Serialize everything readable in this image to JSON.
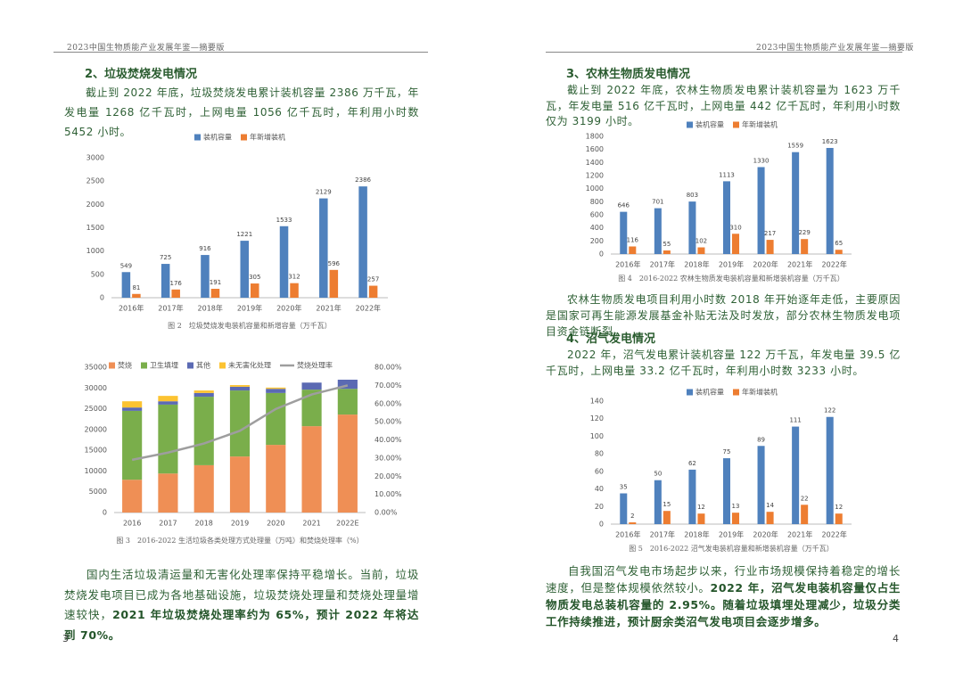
{
  "left_page": {
    "header": "2023中国生物质能产业发展年鉴—摘要版",
    "page_number": "3",
    "heading": "2、垃圾焚烧发电情况",
    "paragraph": "截止到 2022 年底，垃圾焚烧发电累计装机容量 2386 万千瓦，年发电量 1268 亿千瓦时，上网电量 1056 亿千瓦时，年利用小时数 5452 小时。",
    "closing": [
      {
        "text": "国内生活垃圾清运量和无害化处理率保持平稳增长。当前，垃圾焚烧发电项目已成为各地基础设施，垃圾焚烧处理量和焚烧处理量增速较快，"
      },
      {
        "text": "2021 年垃圾焚烧处理率约为 65%，预计 2022 年将达到 70%。",
        "bold": true
      }
    ]
  },
  "right_page": {
    "header": "2023中国生物质能产业发展年鉴—摘要版",
    "page_number": "4",
    "heading_1": "3、农林生物质发电情况",
    "paragraph_1": "截止到 2022 年底，农林生物质发电累计装机容量为 1623 万千瓦，年发电量 516 亿千瓦时，上网电量 442 亿千瓦时，年利用小时数仅为 3199 小时。",
    "paragraph_2": "农林生物质发电项目利用小时数 2018 年开始逐年走低，主要原因是国家可再生能源发展基金补贴无法及时发放，部分农林生物质发电项目资金链断裂。",
    "heading_2": "4、沼气发电情况",
    "paragraph_3": "2022 年，沼气发电累计装机容量 122 万千瓦，年发电量 39.5 亿千瓦时，上网电量 33.2 亿千瓦时，年利用小时数 3233 小时。",
    "closing": [
      {
        "text": "自我国沼气发电市场起步以来，行业市场规模保持着稳定的增长速度，但是整体规模依然较小。"
      },
      {
        "text": "2022 年，沼气发电装机容量仅占生物质发电总装机容量的 2.95%。随着垃圾填埋处理减少，垃圾分类工作持续推进，预计厨余类沼气发电项目会逐步增多。",
        "bold": true
      }
    ]
  },
  "chart_data": [
    {
      "type": "bar",
      "caption": "图 2　垃圾焚烧发电装机容量和新增容量（万千瓦）",
      "categories": [
        "2016年",
        "2017年",
        "2018年",
        "2019年",
        "2020年",
        "2021年",
        "2022年"
      ],
      "series": [
        {
          "name": "装机容量",
          "color": "#4f81bd",
          "values": [
            549,
            725,
            916,
            1221,
            1533,
            2129,
            2386
          ]
        },
        {
          "name": "年新增装机",
          "color": "#ed7d31",
          "values": [
            81,
            176,
            191,
            305,
            312,
            596,
            257
          ]
        }
      ],
      "ylim": [
        0,
        3000
      ],
      "yticks": [
        0,
        500,
        1000,
        1500,
        2000,
        2500,
        3000
      ],
      "value_labels_shown": true
    },
    {
      "type": "bar",
      "stacked": true,
      "caption": "图 3　2016-2022 生活垃圾各类处理方式处理量（万吨）和焚烧处理率（%）",
      "categories": [
        "2016",
        "2017",
        "2018",
        "2019",
        "2020",
        "2021",
        "2022E"
      ],
      "series": [
        {
          "name": "焚烧",
          "color": "#ef8f55",
          "values": [
            7900,
            9400,
            11400,
            13500,
            16300,
            20800,
            23600
          ]
        },
        {
          "name": "卫生填埋",
          "color": "#7aae4b",
          "values": [
            16600,
            16600,
            16500,
            15900,
            12500,
            8800,
            6200
          ]
        },
        {
          "name": "其他",
          "color": "#5b6ab3",
          "values": [
            800,
            800,
            900,
            900,
            1000,
            1700,
            2200
          ]
        },
        {
          "name": "未无害化处理",
          "color": "#fcc331",
          "values": [
            1500,
            1300,
            600,
            400,
            300,
            0,
            0
          ]
        },
        {
          "name": "焚烧处理率",
          "color": "#9e9e9e",
          "type": "line",
          "axis": "y2",
          "values": [
            29,
            33,
            38,
            45,
            57,
            65,
            70
          ]
        }
      ],
      "ylim": [
        0,
        35000
      ],
      "yticks": [
        0,
        5000,
        10000,
        15000,
        20000,
        25000,
        30000,
        35000
      ],
      "y2lim": [
        0,
        80
      ],
      "y2ticks": [
        {
          "value": 0,
          "label": "0.00%"
        },
        {
          "value": 10,
          "label": "10.00%"
        },
        {
          "value": 20,
          "label": "20.00%"
        },
        {
          "value": 30,
          "label": "30.00%"
        },
        {
          "value": 40,
          "label": "40.00%"
        },
        {
          "value": 50,
          "label": "50.00%"
        },
        {
          "value": 60,
          "label": "60.00%"
        },
        {
          "value": 70,
          "label": "70.00%"
        },
        {
          "value": 80,
          "label": "80.00%"
        }
      ]
    },
    {
      "type": "bar",
      "caption": "图 4　2016-2022 农林生物质发电装机容量和新增装机容量（万千瓦）",
      "categories": [
        "2016年",
        "2017年",
        "2018年",
        "2019年",
        "2020年",
        "2021年",
        "2022年"
      ],
      "series": [
        {
          "name": "装机容量",
          "color": "#4f81bd",
          "values": [
            646,
            701,
            803,
            1113,
            1330,
            1559,
            1623
          ]
        },
        {
          "name": "年新增装机",
          "color": "#ed7d31",
          "values": [
            116,
            55,
            102,
            310,
            217,
            229,
            65
          ]
        }
      ],
      "ylim": [
        0,
        1800
      ],
      "yticks": [
        0,
        200,
        400,
        600,
        800,
        1000,
        1200,
        1400,
        1600,
        1800
      ],
      "value_labels_shown": true
    },
    {
      "type": "bar",
      "caption": "图 5　2016-2022 沼气发电装机容量和新增装机容量（万千瓦）",
      "categories": [
        "2016年",
        "2017年",
        "2018年",
        "2019年",
        "2020年",
        "2021年",
        "2022年"
      ],
      "series": [
        {
          "name": "装机容量",
          "color": "#4f81bd",
          "values": [
            35,
            50,
            62,
            75,
            89,
            111,
            122
          ]
        },
        {
          "name": "年新增装机",
          "color": "#ed7d31",
          "values": [
            2,
            15,
            12,
            13,
            14,
            22,
            12
          ]
        }
      ],
      "ylim": [
        0,
        140
      ],
      "yticks": [
        0,
        20,
        40,
        60,
        80,
        100,
        120,
        140
      ],
      "value_labels_shown": true
    }
  ]
}
